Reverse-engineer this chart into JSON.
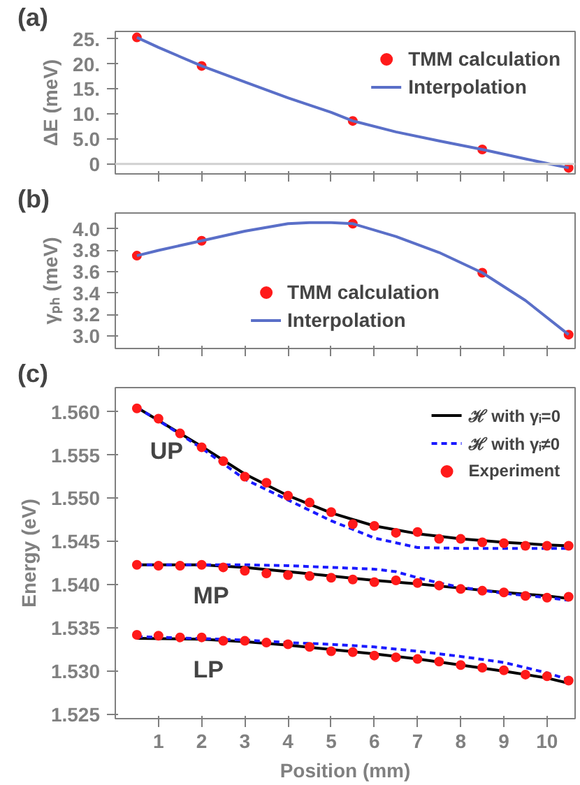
{
  "chart_data": [
    {
      "type": "line",
      "title": "(a)",
      "ylabel": "ΔE (meV)",
      "xlim": [
        0,
        10.65
      ],
      "ylim": [
        -2,
        26.5
      ],
      "xticks": [
        1,
        2,
        3,
        4,
        5,
        6,
        7,
        8,
        9,
        10
      ],
      "yticks": [
        {
          "value": 0,
          "label": "0"
        },
        {
          "value": 5,
          "label": "5.0"
        },
        {
          "value": 10,
          "label": "10."
        },
        {
          "value": 15,
          "label": "15."
        },
        {
          "value": 20,
          "label": "20."
        },
        {
          "value": 25,
          "label": "25."
        }
      ],
      "tick_labels": "y",
      "grid": false,
      "legend": "top right",
      "ref_lines": [
        {
          "axis": "y",
          "value": 0,
          "color": "#d0d0d0"
        }
      ],
      "series": [
        {
          "name": "TMM calculation",
          "type": "scatter",
          "marker": "circle",
          "color": "#ff1a1a",
          "x": [
            0.5,
            2,
            5.5,
            8.5,
            10.5
          ],
          "values": [
            25.3,
            19.6,
            8.6,
            2.9,
            -0.8
          ]
        },
        {
          "name": "Interpolation",
          "color": "#5a6fc8",
          "x": [
            0.5,
            1,
            2,
            3,
            4,
            5,
            5.5,
            6.5,
            7.5,
            8.5,
            9.5,
            10.5
          ],
          "values": [
            25.3,
            23.3,
            19.6,
            16.4,
            13.2,
            10.3,
            8.6,
            6.4,
            4.6,
            2.9,
            1.0,
            -0.8
          ]
        }
      ]
    },
    {
      "type": "line",
      "title": "(b)",
      "ylabel": "γₚₕ (meV)",
      "xlim": [
        0,
        10.65
      ],
      "ylim": [
        2.88,
        4.15
      ],
      "xticks": [
        1,
        2,
        3,
        4,
        5,
        6,
        7,
        8,
        9,
        10
      ],
      "yticks": [
        {
          "value": 3.0,
          "label": "3.0"
        },
        {
          "value": 3.2,
          "label": "3.2"
        },
        {
          "value": 3.4,
          "label": "3.4"
        },
        {
          "value": 3.6,
          "label": "3.6"
        },
        {
          "value": 3.8,
          "label": "3.8"
        },
        {
          "value": 4.0,
          "label": "4.0"
        }
      ],
      "tick_labels": "y",
      "grid": false,
      "legend": "bottom",
      "series": [
        {
          "name": "TMM calculation",
          "type": "scatter",
          "marker": "circle",
          "color": "#ff1a1a",
          "x": [
            0.5,
            2,
            5.5,
            8.5,
            10.5
          ],
          "values": [
            3.75,
            3.89,
            4.05,
            3.59,
            3.01
          ]
        },
        {
          "name": "Interpolation",
          "color": "#5a6fc8",
          "x": [
            0.5,
            1,
            2,
            3,
            4,
            4.5,
            5,
            5.5,
            6.5,
            7.5,
            8.5,
            9.5,
            10.5
          ],
          "values": [
            3.75,
            3.8,
            3.89,
            3.98,
            4.05,
            4.06,
            4.06,
            4.05,
            3.93,
            3.78,
            3.59,
            3.33,
            3.01
          ]
        }
      ]
    },
    {
      "type": "line",
      "title": "(c)",
      "xlabel": "Position (mm)",
      "ylabel": "Energy (eV)",
      "xlim": [
        0,
        10.65
      ],
      "ylim": [
        1.5245,
        1.5628
      ],
      "xticks": [
        1,
        2,
        3,
        4,
        5,
        6,
        7,
        8,
        9,
        10
      ],
      "yticks": [
        {
          "value": 1.525,
          "label": "1.525"
        },
        {
          "value": 1.53,
          "label": "1.530"
        },
        {
          "value": 1.535,
          "label": "1.535"
        },
        {
          "value": 1.54,
          "label": "1.540"
        },
        {
          "value": 1.545,
          "label": "1.545"
        },
        {
          "value": 1.55,
          "label": "1.550"
        },
        {
          "value": 1.555,
          "label": "1.555"
        },
        {
          "value": 1.56,
          "label": "1.560"
        }
      ],
      "grid": false,
      "legend": "top right",
      "annotations": [
        "UP",
        "MP",
        "LP"
      ],
      "series": [
        {
          "name": "ℋ with γᵢ=0",
          "line_style": "solid",
          "color": "#000000",
          "x": [
            0.5,
            1,
            2,
            3,
            4,
            5,
            6,
            7,
            8,
            9,
            10,
            10.5
          ],
          "values": [
            1.5605,
            1.559,
            1.556,
            1.5528,
            1.5503,
            1.5483,
            1.5468,
            1.5459,
            1.5453,
            1.5449,
            1.5446,
            1.5445
          ]
        },
        {
          "name": "ℋ with γᵢ≠0",
          "line_style": "dashed",
          "color": "#1a1aff",
          "x": [
            0.5,
            1,
            2,
            3,
            4,
            5,
            6,
            7,
            8,
            9,
            10,
            10.5
          ],
          "values": [
            1.5605,
            1.559,
            1.5558,
            1.5522,
            1.5498,
            1.5474,
            1.5454,
            1.5443,
            1.5442,
            1.5442,
            1.5442,
            1.5442
          ]
        },
        {
          "name": "Experiment",
          "type": "scatter",
          "marker": "circle",
          "color": "#ff1a1a",
          "x": [
            0.5,
            1,
            1.5,
            2,
            2.5,
            3,
            3.5,
            4,
            4.5,
            5,
            5.5,
            6,
            6.5,
            7,
            7.5,
            8,
            8.5,
            9,
            9.5,
            10,
            10.5
          ],
          "values": [
            1.5604,
            1.5592,
            1.5575,
            1.5559,
            1.5543,
            1.5525,
            1.5518,
            1.5503,
            1.5495,
            1.5484,
            1.547,
            1.5468,
            1.546,
            1.5461,
            1.5453,
            1.5453,
            1.5449,
            1.5448,
            1.5445,
            1.5445,
            1.5445
          ]
        },
        {
          "line_style": "solid",
          "color": "#000000",
          "x": [
            0.5,
            2,
            3,
            4,
            5,
            6,
            7,
            8,
            9,
            10,
            10.5
          ],
          "values": [
            1.5423,
            1.5423,
            1.542,
            1.5415,
            1.541,
            1.5405,
            1.5401,
            1.5396,
            1.5391,
            1.5387,
            1.5384
          ]
        },
        {
          "line_style": "dashed",
          "color": "#1a1aff",
          "x": [
            0.5,
            3,
            4,
            5,
            6,
            6.5,
            7,
            7.5,
            8,
            9,
            10,
            10.5
          ],
          "values": [
            1.5423,
            1.5423,
            1.5422,
            1.542,
            1.5418,
            1.5415,
            1.5408,
            1.5402,
            1.5397,
            1.539,
            1.5385,
            1.5382
          ]
        },
        {
          "type": "scatter",
          "marker": "circle",
          "color": "#ff1a1a",
          "x": [
            0.5,
            1,
            1.5,
            2,
            2.5,
            3,
            3.5,
            4,
            4.5,
            5,
            5.5,
            6,
            6.5,
            7,
            7.5,
            8,
            8.5,
            9,
            9.5,
            10,
            10.5
          ],
          "values": [
            1.5423,
            1.5422,
            1.5422,
            1.5423,
            1.542,
            1.5416,
            1.5413,
            1.5411,
            1.541,
            1.5408,
            1.5406,
            1.5403,
            1.5405,
            1.5402,
            1.5399,
            1.5395,
            1.5393,
            1.5391,
            1.5387,
            1.5385,
            1.5386
          ]
        },
        {
          "line_style": "solid",
          "color": "#000000",
          "x": [
            0.5,
            2,
            3,
            4,
            5,
            6,
            7,
            8,
            9,
            10,
            10.5
          ],
          "values": [
            1.5338,
            1.5337,
            1.5334,
            1.533,
            1.5325,
            1.532,
            1.5314,
            1.5307,
            1.53,
            1.5292,
            1.5286
          ]
        },
        {
          "line_style": "dashed",
          "color": "#1a1aff",
          "x": [
            0.5,
            3,
            4,
            5,
            6,
            7,
            8,
            9,
            10,
            10.5
          ],
          "values": [
            1.534,
            1.5336,
            1.5333,
            1.5331,
            1.5328,
            1.5323,
            1.5317,
            1.531,
            1.5298,
            1.529
          ]
        },
        {
          "type": "scatter",
          "marker": "circle",
          "color": "#ff1a1a",
          "x": [
            0.5,
            1,
            1.5,
            2,
            2.5,
            3,
            3.5,
            4,
            4.5,
            5,
            5.5,
            6,
            6.5,
            7,
            7.5,
            8,
            8.5,
            9,
            9.5,
            10,
            10.5
          ],
          "values": [
            1.5342,
            1.5341,
            1.5339,
            1.5339,
            1.5335,
            1.5335,
            1.5333,
            1.5331,
            1.5328,
            1.5323,
            1.5322,
            1.5318,
            1.5316,
            1.5314,
            1.5311,
            1.5307,
            1.5304,
            1.5301,
            1.5296,
            1.5294,
            1.5289
          ]
        }
      ]
    }
  ]
}
